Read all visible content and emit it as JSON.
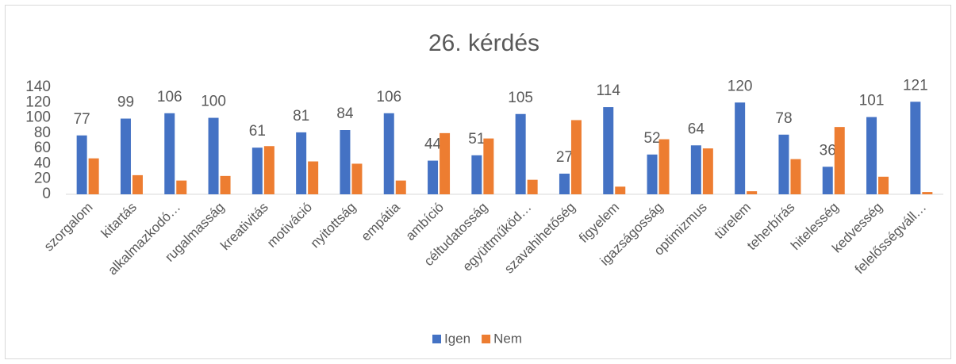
{
  "chart_data": {
    "type": "bar",
    "title": "26. kérdés",
    "categories": [
      "szorgalom",
      "kitartás",
      "alkalmazkodó…",
      "rugalmasság",
      "kreativitás",
      "motiváció",
      "nyitottság",
      "empátia",
      "ambíció",
      "céltudatosság",
      "együttműköd…",
      "szavahihetőség",
      "figyelem",
      "igazságosság",
      "optimizmus",
      "türelem",
      "teherbírás",
      "hitelesség",
      "kedvesség",
      "felelősségváll…"
    ],
    "series": [
      {
        "name": "Igen",
        "color": "#4472c4",
        "show_labels": true,
        "values": [
          77,
          99,
          106,
          100,
          61,
          81,
          84,
          106,
          44,
          51,
          105,
          27,
          114,
          52,
          64,
          120,
          78,
          36,
          101,
          121
        ]
      },
      {
        "name": "Nem",
        "color": "#ed7d31",
        "show_labels": false,
        "values": [
          47,
          25,
          18,
          24,
          63,
          43,
          40,
          18,
          80,
          73,
          19,
          97,
          10,
          72,
          60,
          4,
          46,
          88,
          23,
          3
        ]
      }
    ],
    "ylim": [
      0,
      140
    ],
    "yticks": [
      0,
      20,
      40,
      60,
      80,
      100,
      120,
      140
    ],
    "grid": false,
    "legend": "bottom"
  }
}
